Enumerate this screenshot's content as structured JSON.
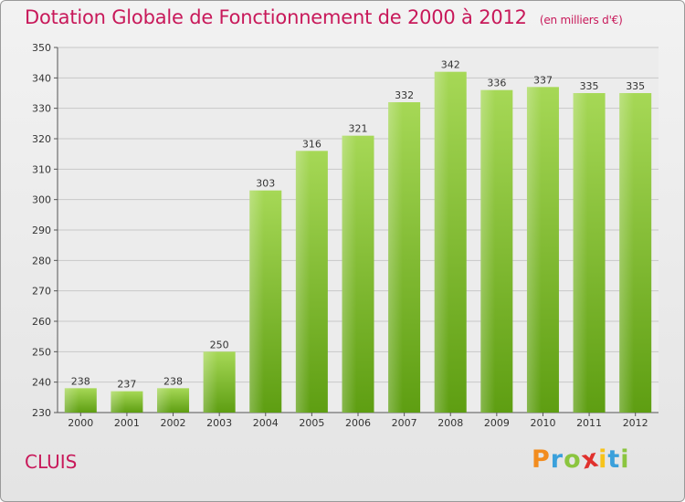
{
  "title": "Dotation Globale de Fonctionnement de 2000 à 2012",
  "unit_note": "(en milliers d'€)",
  "commune": "CLUIS",
  "logo": {
    "text": "Proxiti",
    "letters": [
      "P",
      "r",
      "o",
      "x",
      "i",
      "t",
      "i"
    ]
  },
  "colors": {
    "title": "#c8195a",
    "bar_light": "#a6d856",
    "bar_dark": "#5e9e12",
    "grid": "#c8c8c8"
  },
  "chart_data": {
    "type": "bar",
    "title": "Dotation Globale de Fonctionnement de 2000 à 2012",
    "xlabel": "",
    "ylabel": "",
    "categories": [
      "2000",
      "2001",
      "2002",
      "2003",
      "2004",
      "2005",
      "2006",
      "2007",
      "2008",
      "2009",
      "2010",
      "2011",
      "2012"
    ],
    "values": [
      238,
      237,
      238,
      250,
      303,
      316,
      321,
      332,
      342,
      336,
      337,
      335,
      335
    ],
    "ylim": [
      230,
      350
    ],
    "yticks": [
      230,
      240,
      250,
      260,
      270,
      280,
      290,
      300,
      310,
      320,
      330,
      340,
      350
    ],
    "grid": true
  }
}
